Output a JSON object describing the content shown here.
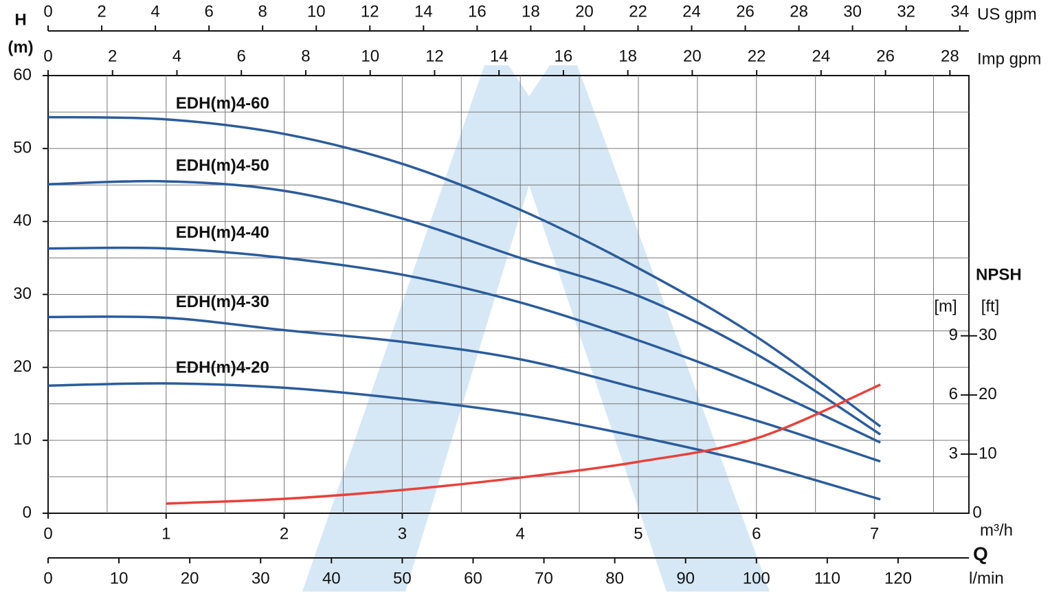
{
  "chart_data": {
    "type": "line",
    "y_title": "H",
    "y_unit": "(m)",
    "xlabel": "m³/h",
    "q_label": "Q",
    "xlim": [
      0,
      7.8
    ],
    "xticks": [
      0,
      1,
      2,
      3,
      4,
      5,
      6,
      7
    ],
    "ylim": [
      0,
      60
    ],
    "yticks": [
      0,
      10,
      20,
      30,
      40,
      50,
      60
    ],
    "grid_x": [
      0.5,
      1,
      1.5,
      2,
      2.5,
      3,
      3.5,
      4,
      4.5,
      5,
      5.5,
      6,
      6.5,
      7,
      7.5
    ],
    "grid_y": [
      5,
      10,
      15,
      20,
      25,
      30,
      35,
      40,
      45,
      50,
      55
    ],
    "top_axes": [
      {
        "label": "US gpm",
        "lim": [
          0,
          34.34
        ],
        "ticks": [
          0,
          2,
          4,
          6,
          8,
          10,
          12,
          14,
          16,
          18,
          20,
          22,
          24,
          26,
          28,
          30,
          32,
          34
        ]
      },
      {
        "label": "Imp gpm",
        "lim": [
          0,
          28.59
        ],
        "ticks": [
          0,
          2,
          4,
          6,
          8,
          10,
          12,
          14,
          16,
          18,
          20,
          22,
          24,
          26,
          28
        ]
      }
    ],
    "bottom_axis2": {
      "label": "l/min",
      "lim": [
        0,
        130
      ],
      "ticks": [
        0,
        10,
        20,
        30,
        40,
        50,
        60,
        70,
        80,
        90,
        100,
        110,
        120
      ]
    },
    "y2_title": "NPSH",
    "y2label": "[m]",
    "y2lim": [
      0,
      22.2
    ],
    "y2ticks": [
      0,
      3,
      6,
      9
    ],
    "y3label": "[ft]",
    "y3lim": [
      0,
      74
    ],
    "y3ticks": [
      10,
      20,
      30
    ],
    "series": [
      {
        "name": "EDH(m)4-60",
        "color": "#2b5c9c",
        "x": [
          0,
          1,
          2,
          3,
          4,
          5,
          6,
          7.05
        ],
        "values": [
          54.3,
          54,
          52,
          47.9,
          41.6,
          33.6,
          24.2,
          11.9
        ]
      },
      {
        "name": "EDH(m)4-50",
        "color": "#2b5c9c",
        "x": [
          0,
          1,
          2,
          3,
          4,
          5,
          6,
          7.05
        ],
        "values": [
          45.1,
          45.5,
          44.2,
          40.4,
          35,
          29.8,
          21.8,
          10.8
        ]
      },
      {
        "name": "EDH(m)4-40",
        "color": "#2b5c9c",
        "x": [
          0,
          1,
          2,
          3,
          4,
          5,
          6,
          7.05
        ],
        "values": [
          36.3,
          36.3,
          35,
          32.7,
          28.9,
          23.7,
          17.6,
          9.7
        ]
      },
      {
        "name": "EDH(m)4-30",
        "color": "#2b5c9c",
        "x": [
          0,
          1,
          2,
          3,
          4,
          5,
          6,
          7.05
        ],
        "values": [
          26.9,
          26.8,
          25.1,
          23.5,
          21.1,
          17.1,
          12.7,
          7.1
        ]
      },
      {
        "name": "EDH(m)4-20",
        "color": "#2b5c9c",
        "x": [
          0,
          1,
          2,
          3,
          4,
          5,
          6,
          7.05
        ],
        "values": [
          17.5,
          17.8,
          17.2,
          15.7,
          13.6,
          10.5,
          6.8,
          1.9
        ]
      },
      {
        "axis": "y2",
        "color": "#e8413a",
        "x": [
          1,
          2,
          3,
          4,
          5,
          6,
          7.05
        ],
        "values": [
          0.49,
          0.73,
          1.18,
          1.81,
          2.61,
          3.8,
          6.52
        ]
      }
    ]
  }
}
